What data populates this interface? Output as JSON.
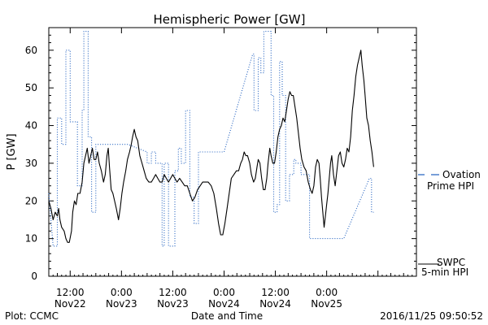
{
  "chart_data": {
    "type": "line",
    "title": "Hemispheric Power [GW]",
    "ylabel": "P [GW]",
    "xlabel": "Date and Time",
    "ylim": [
      0,
      66
    ],
    "yticks": [
      0,
      10,
      20,
      30,
      40,
      50,
      60
    ],
    "x_unit": "hours from 2016-11-22 00:00 UTC",
    "xlim": [
      7,
      93
    ],
    "xticks": [
      {
        "x": 12,
        "line1": "12:00",
        "line2": "Nov22"
      },
      {
        "x": 24,
        "line1": "0:00",
        "line2": "Nov23"
      },
      {
        "x": 36,
        "line1": "12:00",
        "line2": "Nov23"
      },
      {
        "x": 48,
        "line1": "0:00",
        "line2": "Nov24"
      },
      {
        "x": 60,
        "line1": "12:00",
        "line2": "Nov24"
      },
      {
        "x": 72,
        "line1": "0:00",
        "line2": "Nov25"
      }
    ],
    "series": [
      {
        "name": "SWPC 5-min HPI",
        "color": "#000000",
        "style": "solid",
        "points": [
          [
            7,
            20
          ],
          [
            7.5,
            18
          ],
          [
            8,
            15
          ],
          [
            8.5,
            17
          ],
          [
            9,
            16
          ],
          [
            9.3,
            18
          ],
          [
            9.6,
            15
          ],
          [
            10,
            13
          ],
          [
            10.6,
            12
          ],
          [
            11,
            10
          ],
          [
            11.4,
            9
          ],
          [
            11.8,
            9
          ],
          [
            12.3,
            12
          ],
          [
            12.6,
            17
          ],
          [
            13,
            20
          ],
          [
            13.4,
            19
          ],
          [
            13.8,
            22
          ],
          [
            14.3,
            22
          ],
          [
            14.8,
            25
          ],
          [
            15.2,
            30
          ],
          [
            15.6,
            32
          ],
          [
            16,
            34
          ],
          [
            16.4,
            30
          ],
          [
            16.8,
            32
          ],
          [
            17.2,
            34
          ],
          [
            17.6,
            31
          ],
          [
            18,
            31
          ],
          [
            18.4,
            33
          ],
          [
            18.8,
            30
          ],
          [
            19.3,
            28
          ],
          [
            19.8,
            25
          ],
          [
            20.2,
            27
          ],
          [
            20.6,
            32
          ],
          [
            20.9,
            34
          ],
          [
            21.2,
            29
          ],
          [
            21.6,
            23
          ],
          [
            22,
            22
          ],
          [
            22.4,
            20
          ],
          [
            22.8,
            18
          ],
          [
            23.3,
            15
          ],
          [
            23.7,
            18
          ],
          [
            24.1,
            22
          ],
          [
            24.5,
            25
          ],
          [
            25,
            28
          ],
          [
            25.4,
            31
          ],
          [
            25.9,
            33
          ],
          [
            26.3,
            35
          ],
          [
            26.6,
            37
          ],
          [
            27,
            39
          ],
          [
            27.4,
            37
          ],
          [
            27.8,
            36
          ],
          [
            28.3,
            32
          ],
          [
            28.8,
            30
          ],
          [
            29.3,
            28
          ],
          [
            29.8,
            26
          ],
          [
            30.4,
            25
          ],
          [
            31,
            25
          ],
          [
            31.5,
            26
          ],
          [
            32,
            27
          ],
          [
            32.5,
            26
          ],
          [
            33,
            25
          ],
          [
            33.5,
            25
          ],
          [
            34,
            27
          ],
          [
            34.5,
            26
          ],
          [
            35,
            25
          ],
          [
            35.5,
            26
          ],
          [
            36,
            27
          ],
          [
            36.5,
            26
          ],
          [
            37,
            25
          ],
          [
            37.6,
            26
          ],
          [
            38.2,
            25
          ],
          [
            38.8,
            24
          ],
          [
            39.4,
            24
          ],
          [
            40,
            22
          ],
          [
            40.6,
            20
          ],
          [
            41.2,
            21
          ],
          [
            41.8,
            23
          ],
          [
            42.4,
            24
          ],
          [
            43,
            25
          ],
          [
            43.6,
            25
          ],
          [
            44.3,
            25
          ],
          [
            45,
            24
          ],
          [
            45.6,
            22
          ],
          [
            46.2,
            18
          ],
          [
            46.7,
            14
          ],
          [
            47.2,
            11
          ],
          [
            47.7,
            11
          ],
          [
            48.2,
            14
          ],
          [
            48.7,
            18
          ],
          [
            49.2,
            22
          ],
          [
            49.7,
            26
          ],
          [
            50.3,
            27
          ],
          [
            50.9,
            28
          ],
          [
            51.4,
            28
          ],
          [
            51.9,
            30
          ],
          [
            52.3,
            31
          ],
          [
            52.7,
            33
          ],
          [
            53.1,
            32
          ],
          [
            53.5,
            32
          ],
          [
            54,
            30
          ],
          [
            54.4,
            27
          ],
          [
            54.9,
            25
          ],
          [
            55.3,
            26
          ],
          [
            55.7,
            29
          ],
          [
            56,
            31
          ],
          [
            56.4,
            30
          ],
          [
            56.8,
            26
          ],
          [
            57.2,
            23
          ],
          [
            57.6,
            23
          ],
          [
            58,
            26
          ],
          [
            58.3,
            30
          ],
          [
            58.7,
            34
          ],
          [
            59,
            32
          ],
          [
            59.4,
            30
          ],
          [
            59.8,
            30
          ],
          [
            60.2,
            33
          ],
          [
            60.6,
            37
          ],
          [
            61,
            39
          ],
          [
            61.4,
            40
          ],
          [
            61.8,
            42
          ],
          [
            62.2,
            41
          ],
          [
            62.6,
            44
          ],
          [
            63,
            47
          ],
          [
            63.4,
            49
          ],
          [
            63.8,
            48
          ],
          [
            64.2,
            48
          ],
          [
            64.6,
            45
          ],
          [
            65,
            42
          ],
          [
            65.4,
            38
          ],
          [
            65.8,
            34
          ],
          [
            66.2,
            31
          ],
          [
            66.7,
            29
          ],
          [
            67.2,
            28
          ],
          [
            67.7,
            25
          ],
          [
            68.2,
            23
          ],
          [
            68.6,
            22
          ],
          [
            69,
            24
          ],
          [
            69.4,
            29
          ],
          [
            69.8,
            31
          ],
          [
            70.2,
            30
          ],
          [
            70.5,
            26
          ],
          [
            70.8,
            21
          ],
          [
            71.1,
            17
          ],
          [
            71.4,
            13
          ],
          [
            71.7,
            16
          ],
          [
            72,
            19
          ],
          [
            72.3,
            22
          ],
          [
            72.6,
            26
          ],
          [
            72.9,
            30
          ],
          [
            73.2,
            32
          ],
          [
            73.6,
            27
          ],
          [
            74,
            24
          ],
          [
            74.4,
            28
          ],
          [
            74.8,
            32
          ],
          [
            75.2,
            33
          ],
          [
            75.6,
            30
          ],
          [
            76,
            29
          ],
          [
            76.4,
            31
          ],
          [
            76.8,
            34
          ],
          [
            77.2,
            33
          ],
          [
            77.6,
            37
          ],
          [
            78,
            44
          ],
          [
            78.4,
            48
          ],
          [
            78.8,
            53
          ],
          [
            79.2,
            56
          ],
          [
            79.6,
            58
          ],
          [
            80,
            60
          ],
          [
            80.3,
            56
          ],
          [
            80.7,
            52
          ],
          [
            81,
            48
          ],
          [
            81.4,
            42
          ],
          [
            81.8,
            40
          ],
          [
            82.2,
            36
          ],
          [
            82.6,
            33
          ],
          [
            83,
            29
          ]
        ]
      },
      {
        "name": "Ovation Prime HPI",
        "color": "#1f5fbf",
        "style": "dotted",
        "points": [
          [
            7,
            22
          ],
          [
            8,
            8
          ],
          [
            9,
            8
          ],
          [
            9,
            42
          ],
          [
            10,
            42
          ],
          [
            10,
            35
          ],
          [
            11,
            35
          ],
          [
            11,
            60
          ],
          [
            12,
            60
          ],
          [
            12,
            41
          ],
          [
            13.7,
            41
          ],
          [
            13.7,
            24
          ],
          [
            14.8,
            24
          ],
          [
            14.8,
            44
          ],
          [
            15.2,
            44
          ],
          [
            15.2,
            65
          ],
          [
            16.2,
            65
          ],
          [
            16.2,
            37
          ],
          [
            17,
            37
          ],
          [
            17,
            17
          ],
          [
            18,
            17
          ],
          [
            18,
            35
          ],
          [
            24,
            35
          ],
          [
            25.5,
            35
          ],
          [
            30,
            33
          ],
          [
            30,
            30
          ],
          [
            31,
            30
          ],
          [
            31,
            33
          ],
          [
            32,
            33
          ],
          [
            32,
            30
          ],
          [
            33.5,
            30
          ],
          [
            33.5,
            8
          ],
          [
            34,
            8
          ],
          [
            34,
            30
          ],
          [
            35,
            30
          ],
          [
            35,
            8
          ],
          [
            36.5,
            8
          ],
          [
            36.5,
            28
          ],
          [
            37.3,
            28
          ],
          [
            37.3,
            34
          ],
          [
            38,
            34
          ],
          [
            38,
            30
          ],
          [
            39,
            30
          ],
          [
            39,
            44
          ],
          [
            40,
            44
          ],
          [
            40,
            21
          ],
          [
            41,
            21
          ],
          [
            41,
            14
          ],
          [
            42,
            14
          ],
          [
            42,
            33
          ],
          [
            48,
            33
          ],
          [
            48,
            33
          ],
          [
            54.7,
            59
          ],
          [
            55,
            59
          ],
          [
            55,
            44
          ],
          [
            56,
            44
          ],
          [
            56,
            58
          ],
          [
            56.6,
            58
          ],
          [
            56.6,
            54
          ],
          [
            57.3,
            54
          ],
          [
            57.3,
            65
          ],
          [
            59,
            65
          ],
          [
            59,
            48
          ],
          [
            59.6,
            48
          ],
          [
            59.6,
            17
          ],
          [
            60.4,
            17
          ],
          [
            60.4,
            19
          ],
          [
            61,
            19
          ],
          [
            61,
            57
          ],
          [
            61.6,
            57
          ],
          [
            61.6,
            48
          ],
          [
            62.4,
            48
          ],
          [
            62.4,
            20
          ],
          [
            63.3,
            20
          ],
          [
            63.3,
            27
          ],
          [
            64.3,
            27
          ],
          [
            64.3,
            31
          ],
          [
            64.8,
            31
          ],
          [
            64.8,
            30
          ],
          [
            66,
            30
          ],
          [
            66,
            27
          ],
          [
            68,
            27
          ],
          [
            68,
            10
          ],
          [
            72,
            10
          ],
          [
            72.6,
            10
          ],
          [
            76,
            10
          ],
          [
            82,
            26
          ],
          [
            82.5,
            26
          ],
          [
            82.5,
            17
          ],
          [
            83,
            17
          ]
        ]
      }
    ],
    "legend": [
      {
        "series": "Ovation Prime HPI",
        "label_lines": [
          "Ovation",
          "Prime HPI"
        ],
        "placement": "right, mid"
      },
      {
        "series": "SWPC 5-min HPI",
        "label_lines": [
          "SWPC",
          "5-min HPI"
        ],
        "placement": "right, bottom"
      }
    ]
  },
  "footer": {
    "left": "Plot: CCMC",
    "right": "2016/11/25 09:50:52"
  }
}
